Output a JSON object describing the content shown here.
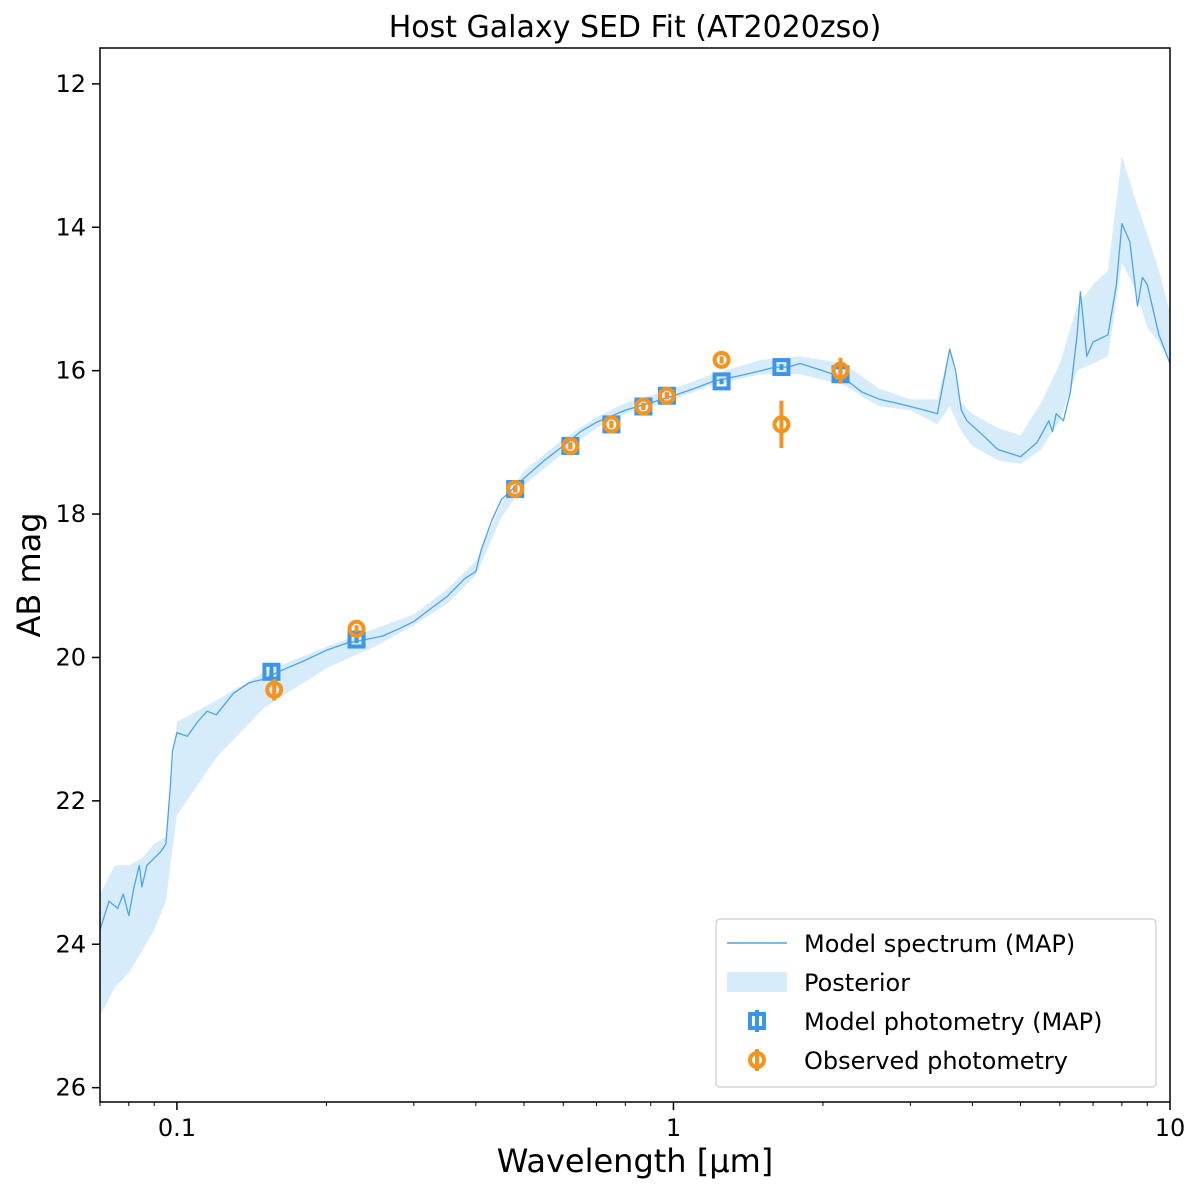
{
  "chart_data": {
    "type": "line",
    "title": "Host Galaxy SED Fit (AT2020zso)",
    "xlabel": "Wavelength [μm]",
    "ylabel": "AB mag",
    "xscale": "log",
    "xlim": [
      0.07,
      10
    ],
    "ylim": [
      26.2,
      11.5
    ],
    "y_inverted": true,
    "xticks": [
      {
        "value": 0.1,
        "label": "0.1"
      },
      {
        "value": 1,
        "label": "1"
      },
      {
        "value": 10,
        "label": "10"
      }
    ],
    "yticks": [
      {
        "value": 12,
        "label": "12"
      },
      {
        "value": 14,
        "label": "14"
      },
      {
        "value": 16,
        "label": "16"
      },
      {
        "value": 18,
        "label": "18"
      },
      {
        "value": 20,
        "label": "20"
      },
      {
        "value": 22,
        "label": "22"
      },
      {
        "value": 24,
        "label": "24"
      },
      {
        "value": 26,
        "label": "26"
      }
    ],
    "grid": false,
    "legend_position": "bottom-right",
    "colors": {
      "spectrum": "#4da3eb",
      "posterior": "#d6ecfb",
      "model_phot": "#3b95e8",
      "observed_phot": "#f5931f"
    },
    "legend": [
      {
        "label": "Model spectrum (MAP)",
        "kind": "line"
      },
      {
        "label": "Posterior",
        "kind": "band"
      },
      {
        "label": "Model photometry (MAP)",
        "kind": "square"
      },
      {
        "label": "Observed photometry",
        "kind": "circle"
      }
    ],
    "spectrum": {
      "name": "Model spectrum (MAP)",
      "x": [
        0.07,
        0.073,
        0.076,
        0.078,
        0.08,
        0.082,
        0.084,
        0.085,
        0.087,
        0.09,
        0.093,
        0.095,
        0.097,
        0.098,
        0.1,
        0.105,
        0.11,
        0.115,
        0.12,
        0.13,
        0.14,
        0.15,
        0.16,
        0.18,
        0.2,
        0.22,
        0.24,
        0.26,
        0.28,
        0.3,
        0.32,
        0.35,
        0.38,
        0.4,
        0.41,
        0.43,
        0.45,
        0.5,
        0.55,
        0.6,
        0.65,
        0.7,
        0.8,
        0.9,
        1.0,
        1.1,
        1.2,
        1.3,
        1.4,
        1.5,
        1.6,
        1.7,
        1.8,
        2.0,
        2.2,
        2.4,
        2.6,
        2.8,
        3.0,
        3.2,
        3.4,
        3.6,
        3.7,
        3.8,
        3.9,
        4.2,
        4.5,
        5.0,
        5.4,
        5.7,
        5.8,
        5.9,
        6.1,
        6.3,
        6.5,
        6.6,
        6.8,
        7.0,
        7.5,
        7.8,
        8.0,
        8.3,
        8.6,
        8.8,
        9.0,
        9.5,
        10.0
      ],
      "y": [
        23.8,
        23.4,
        23.5,
        23.3,
        23.6,
        23.2,
        22.9,
        23.2,
        22.9,
        22.8,
        22.7,
        22.6,
        21.8,
        21.3,
        21.05,
        21.1,
        20.9,
        20.75,
        20.8,
        20.5,
        20.35,
        20.3,
        20.2,
        20.05,
        19.9,
        19.8,
        19.75,
        19.7,
        19.6,
        19.5,
        19.35,
        19.15,
        18.9,
        18.8,
        18.5,
        18.1,
        17.8,
        17.5,
        17.25,
        17.05,
        16.85,
        16.72,
        16.55,
        16.45,
        16.35,
        16.25,
        16.15,
        16.1,
        16.05,
        16.0,
        15.95,
        15.95,
        15.9,
        16.0,
        16.1,
        16.3,
        16.4,
        16.45,
        16.5,
        16.55,
        16.6,
        15.7,
        16.0,
        16.55,
        16.7,
        16.9,
        17.1,
        17.2,
        17.0,
        16.7,
        16.85,
        16.6,
        16.7,
        16.3,
        15.5,
        14.9,
        15.8,
        15.6,
        15.5,
        14.8,
        13.95,
        14.2,
        15.1,
        14.7,
        14.8,
        15.5,
        15.9
      ]
    },
    "posterior": {
      "name": "Posterior",
      "x": [
        0.07,
        0.075,
        0.08,
        0.085,
        0.09,
        0.095,
        0.1,
        0.12,
        0.15,
        0.2,
        0.25,
        0.3,
        0.35,
        0.4,
        0.45,
        0.5,
        0.6,
        0.7,
        0.8,
        1.0,
        1.2,
        1.5,
        1.8,
        2.2,
        2.6,
        3.0,
        3.4,
        3.6,
        3.8,
        4.0,
        4.5,
        5.0,
        5.5,
        6.0,
        6.5,
        7.0,
        7.5,
        8.0,
        8.5,
        9.0,
        9.5,
        10.0
      ],
      "y_low": [
        25.0,
        24.6,
        24.4,
        24.1,
        23.8,
        23.4,
        22.2,
        21.4,
        20.7,
        20.15,
        19.85,
        19.55,
        19.25,
        18.85,
        18.05,
        17.6,
        17.15,
        16.8,
        16.6,
        16.4,
        16.2,
        16.05,
        16.05,
        16.2,
        16.5,
        16.55,
        16.75,
        16.5,
        16.85,
        17.05,
        17.25,
        17.3,
        17.1,
        16.7,
        16.0,
        15.9,
        15.8,
        14.5,
        14.85,
        15.4,
        15.6,
        15.9
      ],
      "y_high": [
        23.3,
        22.9,
        22.9,
        22.8,
        22.6,
        22.5,
        20.9,
        20.6,
        20.2,
        19.85,
        19.6,
        19.4,
        19.05,
        18.65,
        17.85,
        17.4,
        16.95,
        16.65,
        16.45,
        16.25,
        16.05,
        15.85,
        15.8,
        15.9,
        16.25,
        16.4,
        16.4,
        15.7,
        16.45,
        16.6,
        16.8,
        16.9,
        16.45,
        15.9,
        15.1,
        14.8,
        14.6,
        13.0,
        13.6,
        14.1,
        14.6,
        15.2
      ]
    },
    "model_photometry": {
      "name": "Model photometry (MAP)",
      "x": [
        0.155,
        0.23,
        0.48,
        0.62,
        0.75,
        0.87,
        0.97,
        1.25,
        1.65,
        2.17
      ],
      "y": [
        20.2,
        19.75,
        17.65,
        17.05,
        16.75,
        16.5,
        16.35,
        16.15,
        15.95,
        16.05
      ],
      "err": [
        0.1,
        0.05,
        0.04,
        0.04,
        0.04,
        0.04,
        0.04,
        0.04,
        0.04,
        0.04
      ]
    },
    "observed_photometry": {
      "name": "Observed photometry",
      "x": [
        0.157,
        0.23,
        0.48,
        0.62,
        0.75,
        0.87,
        0.97,
        1.25,
        1.65,
        2.17
      ],
      "y": [
        20.45,
        19.6,
        17.65,
        17.05,
        16.75,
        16.5,
        16.35,
        15.85,
        16.75,
        16.0
      ],
      "err": [
        0.15,
        0.05,
        0.05,
        0.05,
        0.05,
        0.05,
        0.05,
        0.05,
        0.33,
        0.18
      ]
    }
  }
}
